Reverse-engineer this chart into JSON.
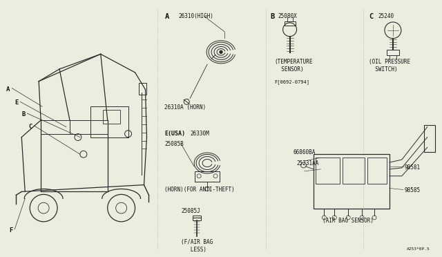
{
  "bg_color": "#ededdf",
  "line_color": "#2a2a2a",
  "text_color": "#111111",
  "watermark": "A253*0P.5",
  "part_26310_HIGH": "26310(HIGH)",
  "part_26310A": "26310A (HORN)",
  "part_25080X": "25080X",
  "part_25240": "25240",
  "part_temp_sensor": "(TEMPERATURE\n  SENSOR)",
  "part_oil_pressure": "(OIL PRESSURE\n  SWITCH)",
  "part_date": "F[0692-0794]",
  "part_26330M": "26330M",
  "part_25085B": "25085B",
  "part_horn_anti_theft": "(HORN)(FOR ANTI-THEFT)",
  "part_25085J": "25085J",
  "part_airbag_less": "(F/AIR BAG\n   LESS)",
  "part_66860BA": "66860BA",
  "part_25231AA": "25231AA",
  "part_98581": "98581",
  "part_98585": "98585",
  "part_airbag_sensor": "(AIR BAG SENSOR)",
  "section_E": "E(USA)"
}
